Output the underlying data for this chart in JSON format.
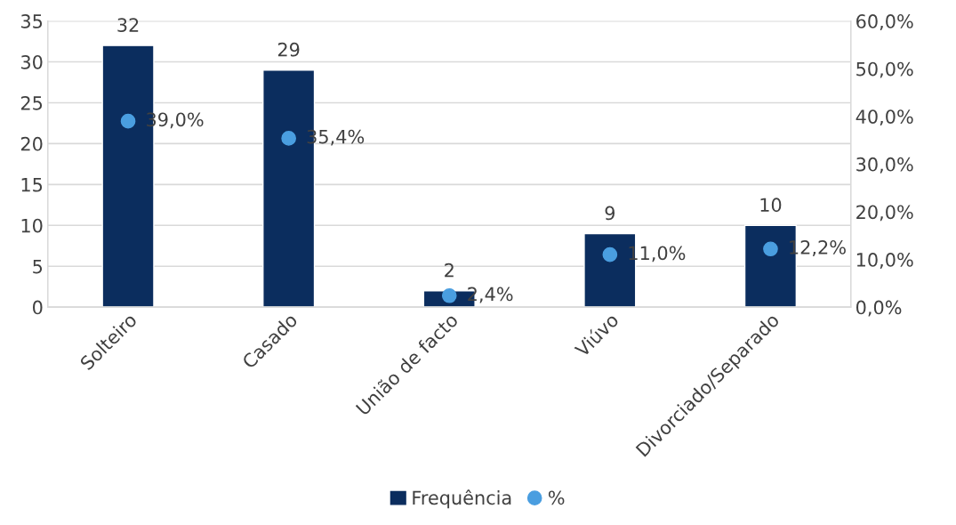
{
  "chart_data": {
    "type": "bar",
    "categories": [
      "Solteiro",
      "Casado",
      "União de facto",
      "Viúvo",
      "Divorciado/Separado"
    ],
    "series": [
      {
        "name": "Frequência",
        "color": "#0b2d5e",
        "values": [
          32,
          29,
          2,
          9,
          10
        ],
        "value_labels": [
          "32",
          "29",
          "2",
          "9",
          "10"
        ]
      },
      {
        "name": "%",
        "type": "scatter",
        "axis": "y2",
        "color": "#4a9ee0",
        "marker": "circle",
        "values": [
          39.0,
          35.4,
          2.4,
          11.0,
          12.2
        ],
        "value_labels": [
          "39,0%",
          "35,4%",
          "2,4%",
          "11,0%",
          "12,2%"
        ]
      }
    ],
    "ylim": [
      0,
      35
    ],
    "yticks": [
      0,
      5,
      10,
      15,
      20,
      25,
      30,
      35
    ],
    "y2lim": [
      0,
      60
    ],
    "y2ticks": [
      {
        "value": 0,
        "label": "0,0%"
      },
      {
        "value": 10,
        "label": "10,0%"
      },
      {
        "value": 20,
        "label": "20,0%"
      },
      {
        "value": 30,
        "label": "30,0%"
      },
      {
        "value": 40,
        "label": "40,0%"
      },
      {
        "value": 50,
        "label": "50,0%"
      },
      {
        "value": 60,
        "label": "60,0%"
      }
    ],
    "grid": "y",
    "legend": "bottom"
  }
}
